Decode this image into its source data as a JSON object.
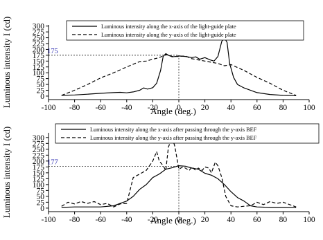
{
  "chart_data": [
    {
      "type": "line",
      "xlabel": "Angle (deg.)",
      "ylabel": "Luminous intensity I (cd)",
      "xlim": [
        -100,
        100
      ],
      "ylim": [
        -15,
        305
      ],
      "xticks": [
        -100,
        -80,
        -60,
        -40,
        -20,
        0,
        20,
        40,
        60,
        80,
        100
      ],
      "yticks": [
        0,
        25,
        50,
        75,
        100,
        125,
        150,
        175,
        200,
        225,
        250,
        275,
        300
      ],
      "grid": false,
      "legend_position": "top",
      "annotation": {
        "label": "175",
        "y": 175,
        "x": 0
      },
      "series": [
        {
          "name": "Luminous intensity along the x-axis of the light-guide plate",
          "style": "solid",
          "points": [
            [
              -90,
              3
            ],
            [
              -80,
              5
            ],
            [
              -70,
              8
            ],
            [
              -60,
              12
            ],
            [
              -50,
              15
            ],
            [
              -45,
              16
            ],
            [
              -40,
              14
            ],
            [
              -35,
              18
            ],
            [
              -30,
              25
            ],
            [
              -27,
              35
            ],
            [
              -24,
              30
            ],
            [
              -20,
              36
            ],
            [
              -17,
              55
            ],
            [
              -14,
              110
            ],
            [
              -12,
              170
            ],
            [
              -10,
              182
            ],
            [
              -8,
              175
            ],
            [
              -5,
              168
            ],
            [
              0,
              172
            ],
            [
              5,
              170
            ],
            [
              10,
              165
            ],
            [
              13,
              168
            ],
            [
              16,
              158
            ],
            [
              20,
              165
            ],
            [
              24,
              155
            ],
            [
              27,
              150
            ],
            [
              30,
              170
            ],
            [
              33,
              235
            ],
            [
              35,
              250
            ],
            [
              37,
              230
            ],
            [
              39,
              140
            ],
            [
              42,
              80
            ],
            [
              45,
              50
            ],
            [
              50,
              35
            ],
            [
              60,
              15
            ],
            [
              70,
              7
            ],
            [
              80,
              3
            ],
            [
              90,
              2
            ]
          ]
        },
        {
          "name": "Luminous intensity along the y-axis of the light-guide plate",
          "style": "dashed",
          "points": [
            [
              -90,
              3
            ],
            [
              -80,
              25
            ],
            [
              -70,
              50
            ],
            [
              -60,
              78
            ],
            [
              -50,
              100
            ],
            [
              -40,
              125
            ],
            [
              -30,
              148
            ],
            [
              -25,
              150
            ],
            [
              -20,
              158
            ],
            [
              -15,
              165
            ],
            [
              -10,
              178
            ],
            [
              -5,
              170
            ],
            [
              0,
              170
            ],
            [
              5,
              172
            ],
            [
              10,
              160
            ],
            [
              15,
              155
            ],
            [
              20,
              150
            ],
            [
              25,
              145
            ],
            [
              30,
              140
            ],
            [
              35,
              130
            ],
            [
              40,
              135
            ],
            [
              50,
              110
            ],
            [
              60,
              80
            ],
            [
              70,
              55
            ],
            [
              80,
              25
            ],
            [
              90,
              3
            ]
          ]
        }
      ]
    },
    {
      "type": "line",
      "xlabel": "Angle (deg.)",
      "ylabel": "Luminous intensity I (cd)",
      "xlim": [
        -100,
        100
      ],
      "ylim": [
        -15,
        320
      ],
      "xticks": [
        -100,
        -80,
        -60,
        -40,
        -20,
        0,
        20,
        40,
        60,
        80,
        100
      ],
      "yticks": [
        0,
        25,
        50,
        75,
        100,
        125,
        150,
        175,
        200,
        225,
        250,
        275,
        300
      ],
      "grid": false,
      "legend_position": "top",
      "annotation": {
        "label": "177",
        "y": 177,
        "x": 0
      },
      "series": [
        {
          "name": "Luminous intensity along the x-axis after passing through the y-axis BEF",
          "style": "solid",
          "points": [
            [
              -90,
              3
            ],
            [
              -80,
              5
            ],
            [
              -70,
              5
            ],
            [
              -60,
              5
            ],
            [
              -50,
              10
            ],
            [
              -45,
              20
            ],
            [
              -40,
              30
            ],
            [
              -35,
              50
            ],
            [
              -30,
              80
            ],
            [
              -25,
              100
            ],
            [
              -20,
              130
            ],
            [
              -15,
              145
            ],
            [
              -10,
              165
            ],
            [
              -5,
              172
            ],
            [
              0,
              180
            ],
            [
              5,
              178
            ],
            [
              10,
              170
            ],
            [
              15,
              165
            ],
            [
              20,
              148
            ],
            [
              25,
              140
            ],
            [
              30,
              125
            ],
            [
              35,
              100
            ],
            [
              40,
              70
            ],
            [
              45,
              45
            ],
            [
              50,
              30
            ],
            [
              55,
              10
            ],
            [
              60,
              5
            ],
            [
              70,
              3
            ],
            [
              80,
              3
            ],
            [
              90,
              2
            ]
          ]
        },
        {
          "name": "Luminous intensity along the y-axis after passing through the y-axis BEF",
          "style": "dashed",
          "points": [
            [
              -90,
              8
            ],
            [
              -85,
              25
            ],
            [
              -80,
              18
            ],
            [
              -75,
              28
            ],
            [
              -70,
              20
            ],
            [
              -65,
              28
            ],
            [
              -60,
              15
            ],
            [
              -55,
              20
            ],
            [
              -50,
              5
            ],
            [
              -45,
              18
            ],
            [
              -40,
              20
            ],
            [
              -35,
              130
            ],
            [
              -30,
              145
            ],
            [
              -25,
              160
            ],
            [
              -20,
              200
            ],
            [
              -17,
              240
            ],
            [
              -15,
              200
            ],
            [
              -12,
              180
            ],
            [
              -10,
              160
            ],
            [
              -8,
              260
            ],
            [
              -5,
              300
            ],
            [
              -3,
              260
            ],
            [
              0,
              165
            ],
            [
              3,
              175
            ],
            [
              5,
              170
            ],
            [
              8,
              160
            ],
            [
              10,
              175
            ],
            [
              13,
              160
            ],
            [
              15,
              170
            ],
            [
              18,
              160
            ],
            [
              20,
              175
            ],
            [
              23,
              170
            ],
            [
              25,
              150
            ],
            [
              28,
              195
            ],
            [
              30,
              180
            ],
            [
              33,
              130
            ],
            [
              36,
              50
            ],
            [
              40,
              10
            ],
            [
              45,
              5
            ],
            [
              50,
              8
            ],
            [
              55,
              10
            ],
            [
              60,
              25
            ],
            [
              65,
              15
            ],
            [
              70,
              28
            ],
            [
              75,
              20
            ],
            [
              80,
              25
            ],
            [
              85,
              15
            ],
            [
              90,
              5
            ]
          ]
        }
      ]
    }
  ]
}
